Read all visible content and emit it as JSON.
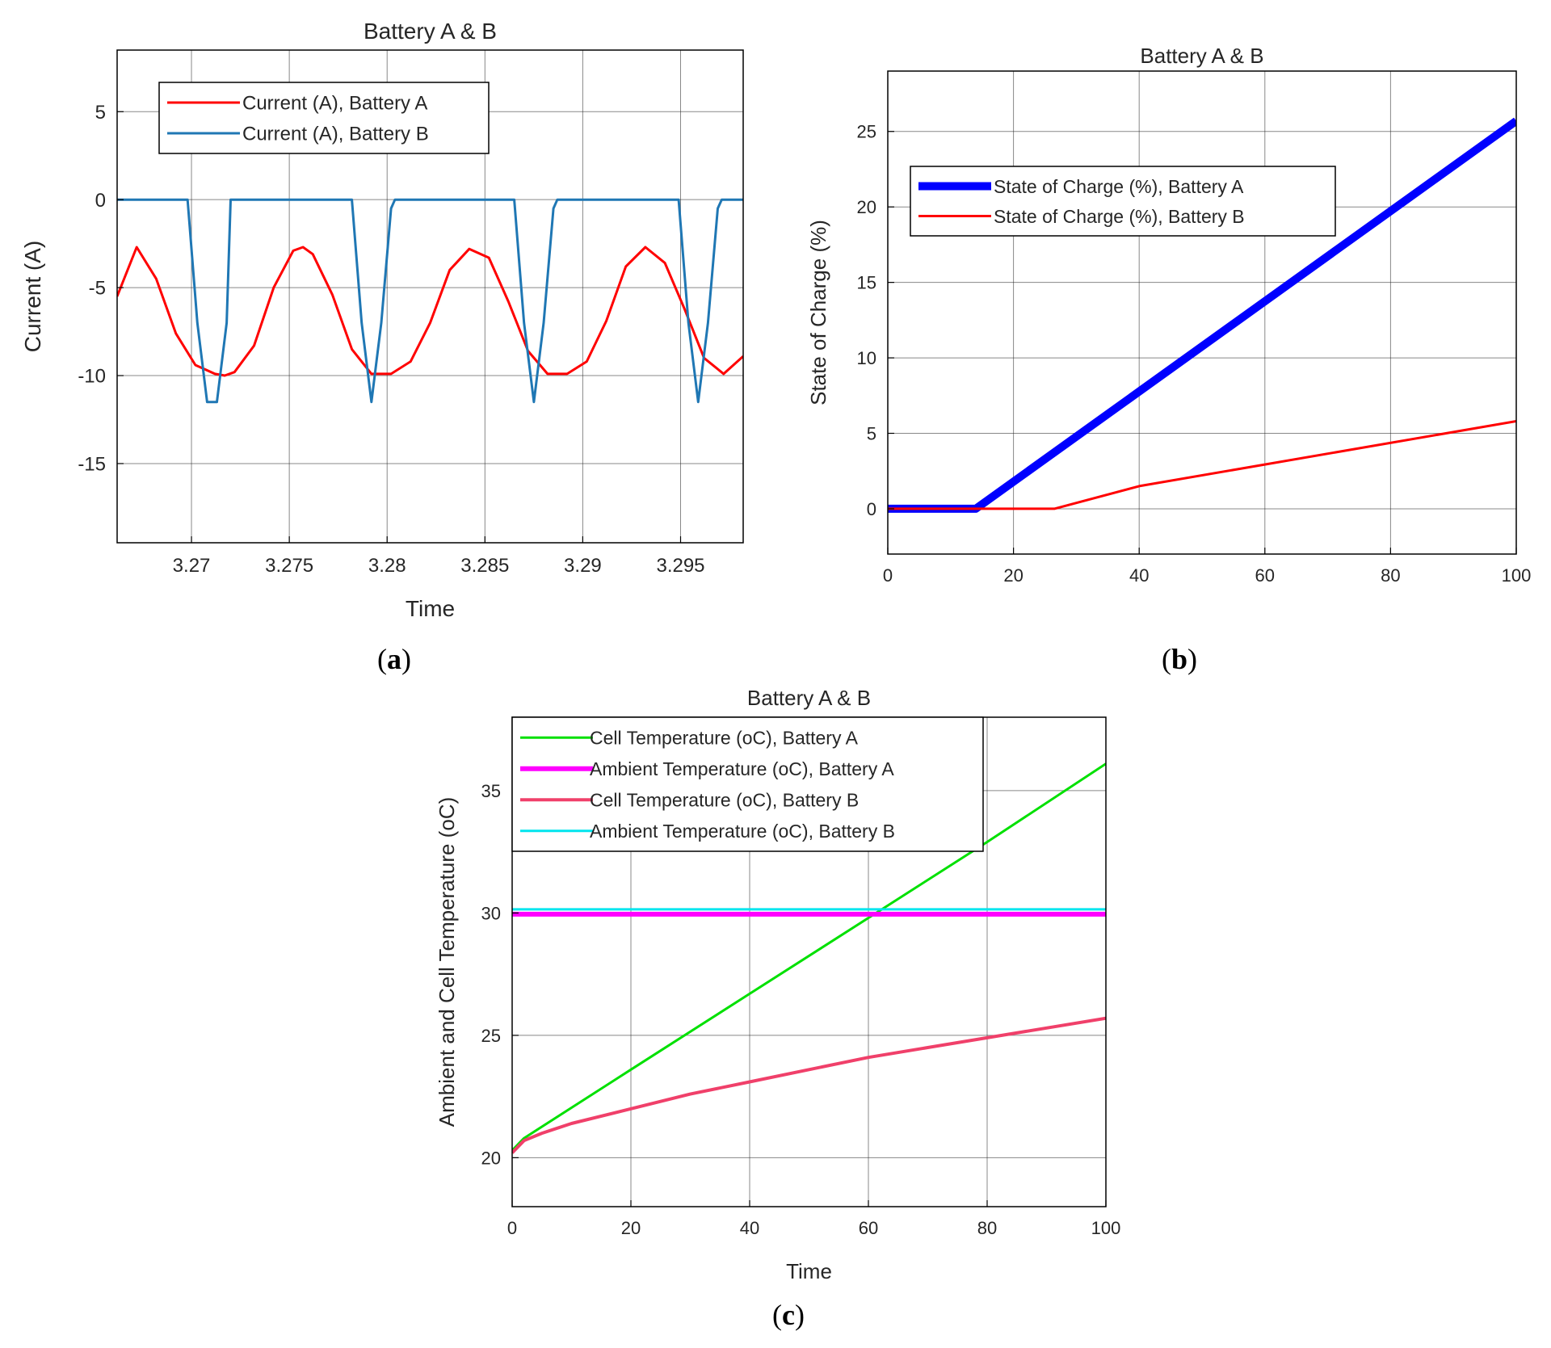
{
  "subfigure_labels": [
    {
      "open": "(",
      "letter": "a",
      "close": ")"
    },
    {
      "open": "(",
      "letter": "b",
      "close": ")"
    },
    {
      "open": "(",
      "letter": "c",
      "close": ")"
    }
  ],
  "chart_data": [
    {
      "id": "a",
      "type": "line",
      "title": "Battery A & B",
      "xlabel": "Time",
      "ylabel": "Current (A)",
      "xlim": [
        3.2662,
        3.2982
      ],
      "ylim": [
        -19.5,
        8.5
      ],
      "xticks": [
        3.27,
        3.275,
        3.28,
        3.285,
        3.29,
        3.295
      ],
      "xtick_labels": [
        "3.27",
        "3.275",
        "3.28",
        "3.285",
        "3.29",
        "3.295"
      ],
      "yticks": [
        5,
        0,
        -5,
        -10,
        -15
      ],
      "ytick_labels": [
        "5",
        "0",
        "-5",
        "-10",
        "-15"
      ],
      "grid": true,
      "legend_position": "top-left",
      "series": [
        {
          "name": "Current (A), Battery A",
          "color": "#ff0000",
          "width": 3,
          "x": [
            3.2662,
            3.2672,
            3.2682,
            3.2692,
            3.2702,
            3.2712,
            3.2717,
            3.2722,
            3.2732,
            3.2742,
            3.2752,
            3.2757,
            3.2762,
            3.2772,
            3.2782,
            3.2792,
            3.2802,
            3.2812,
            3.2822,
            3.2832,
            3.2842,
            3.2852,
            3.2862,
            3.2872,
            3.2882,
            3.2892,
            3.2902,
            3.2912,
            3.2922,
            3.2932,
            3.2942,
            3.2952,
            3.2962,
            3.2972,
            3.2982
          ],
          "y": [
            -5.5,
            -2.7,
            -4.5,
            -7.6,
            -9.4,
            -9.9,
            -10.0,
            -9.8,
            -8.3,
            -5.0,
            -2.9,
            -2.7,
            -3.1,
            -5.4,
            -8.5,
            -9.9,
            -9.9,
            -9.2,
            -7.0,
            -4.0,
            -2.8,
            -3.3,
            -5.8,
            -8.6,
            -9.9,
            -9.9,
            -9.2,
            -6.9,
            -3.8,
            -2.7,
            -3.6,
            -6.2,
            -9.0,
            -9.9,
            -8.9
          ]
        },
        {
          "name": "Current (A), Battery B",
          "color": "#1f77b4",
          "width": 3,
          "x": [
            3.2662,
            3.2698,
            3.2703,
            3.2708,
            3.2713,
            3.2718,
            3.272,
            3.278,
            3.2782,
            3.2787,
            3.2792,
            3.2797,
            3.2802,
            3.2804,
            3.2863,
            3.2865,
            3.287,
            3.2875,
            3.288,
            3.2885,
            3.2887,
            3.2947,
            3.2949,
            3.2954,
            3.2959,
            3.2964,
            3.2969,
            3.2971,
            3.2982
          ],
          "y": [
            0,
            0,
            -7.0,
            -11.5,
            -11.5,
            -7.0,
            0,
            0,
            0,
            -7.0,
            -11.5,
            -7.0,
            -0.5,
            0,
            0,
            0,
            -7.0,
            -11.5,
            -7.0,
            -0.5,
            0,
            0,
            0,
            -7.0,
            -11.5,
            -7.0,
            -0.5,
            0,
            0
          ]
        }
      ]
    },
    {
      "id": "b",
      "type": "line",
      "title": "Battery A & B",
      "xlabel": "",
      "ylabel": "State of Charge (%)",
      "xlim": [
        0,
        100
      ],
      "ylim": [
        -3,
        29
      ],
      "xticks": [
        0,
        20,
        40,
        60,
        80,
        100
      ],
      "xtick_labels": [
        "0",
        "20",
        "40",
        "60",
        "80",
        "100"
      ],
      "yticks": [
        0,
        5,
        10,
        15,
        20,
        25
      ],
      "ytick_labels": [
        "0",
        "5",
        "10",
        "15",
        "20",
        "25"
      ],
      "grid": true,
      "legend_position": "top-left",
      "series": [
        {
          "name": "State of Charge (%), Battery A",
          "color": "#0000ff",
          "width": 10,
          "x": [
            0,
            14,
            100
          ],
          "y": [
            0,
            0,
            25.7
          ]
        },
        {
          "name": "State of Charge (%), Battery B",
          "color": "#ff0000",
          "width": 3,
          "x": [
            0,
            26.5,
            40,
            100
          ],
          "y": [
            0,
            0,
            1.5,
            5.8
          ]
        }
      ]
    },
    {
      "id": "c",
      "type": "line",
      "title": "Battery A & B",
      "xlabel": "Time",
      "ylabel": "Ambient and Cell Temperature (oC)",
      "xlim": [
        0,
        100
      ],
      "ylim": [
        18,
        38
      ],
      "xticks": [
        0,
        20,
        40,
        60,
        80,
        100
      ],
      "xtick_labels": [
        "0",
        "20",
        "40",
        "60",
        "80",
        "100"
      ],
      "yticks": [
        20,
        25,
        30,
        35
      ],
      "ytick_labels": [
        "20",
        "25",
        "30",
        "35"
      ],
      "grid": true,
      "legend_position": "top-left",
      "series": [
        {
          "name": "Cell Temperature (oC), Battery A",
          "color": "#00e000",
          "width": 3,
          "x": [
            0,
            2,
            20,
            40,
            60,
            80,
            100
          ],
          "y": [
            20.3,
            20.8,
            23.6,
            26.7,
            29.8,
            32.9,
            36.1
          ]
        },
        {
          "name": "Ambient Temperature (oC), Battery A",
          "color": "#ff00ff",
          "width": 6,
          "x": [
            0,
            100
          ],
          "y": [
            29.95,
            29.95
          ]
        },
        {
          "name": "Cell Temperature (oC), Battery B",
          "color": "#f0406a",
          "width": 4,
          "x": [
            0,
            2,
            5,
            10,
            20,
            30,
            40,
            50,
            60,
            70,
            80,
            90,
            100
          ],
          "y": [
            20.2,
            20.7,
            21.0,
            21.4,
            22.0,
            22.6,
            23.1,
            23.6,
            24.1,
            24.5,
            24.9,
            25.3,
            25.7
          ]
        },
        {
          "name": "Ambient Temperature (oC), Battery B",
          "color": "#00e5ee",
          "width": 3,
          "x": [
            0,
            100
          ],
          "y": [
            30.15,
            30.15
          ]
        }
      ]
    }
  ]
}
